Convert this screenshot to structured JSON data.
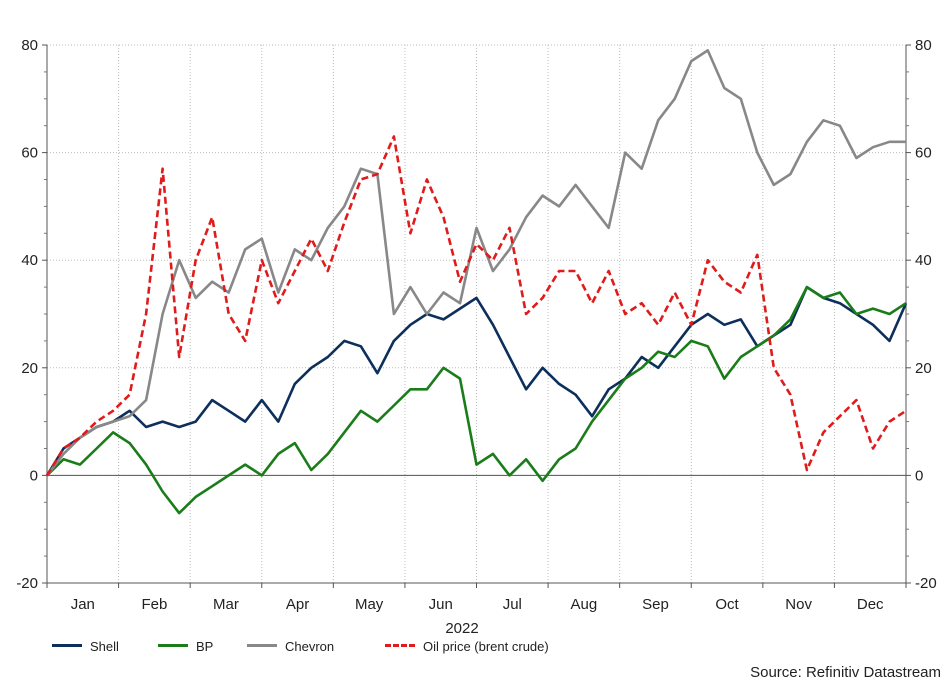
{
  "chart_data": {
    "type": "line",
    "xlabel": "2022",
    "ylabel": "",
    "ylim": [
      -20,
      80
    ],
    "yticks": [
      -20,
      0,
      20,
      40,
      60,
      80
    ],
    "categories": [
      "Jan",
      "Feb",
      "Mar",
      "Apr",
      "May",
      "Jun",
      "Jul",
      "Aug",
      "Sep",
      "Oct",
      "Nov",
      "Dec"
    ],
    "x_unit": "week of 2022 (1–52)",
    "grid": true,
    "legend_position": "bottom",
    "source": "Source: Refinitiv Datastream",
    "series": [
      {
        "name": "Shell",
        "color": "#0c2f5c",
        "dash": false,
        "x": [
          0,
          1,
          2,
          3,
          4,
          5,
          6,
          7,
          8,
          9,
          10,
          11,
          12,
          13,
          14,
          15,
          16,
          17,
          18,
          19,
          20,
          21,
          22,
          23,
          24,
          25,
          26,
          27,
          28,
          29,
          30,
          31,
          32,
          33,
          34,
          35,
          36,
          37,
          38,
          39,
          40,
          41,
          42,
          43,
          44,
          45,
          46,
          47,
          48,
          49,
          50,
          51,
          52
        ],
        "values": [
          0,
          5,
          7,
          9,
          10,
          12,
          9,
          10,
          9,
          10,
          14,
          12,
          10,
          14,
          10,
          17,
          20,
          22,
          25,
          24,
          19,
          25,
          28,
          30,
          29,
          31,
          33,
          28,
          22,
          16,
          20,
          17,
          15,
          11,
          16,
          18,
          22,
          20,
          24,
          28,
          30,
          28,
          29,
          24,
          26,
          28,
          35,
          33,
          32,
          30,
          28,
          25,
          32
        ]
      },
      {
        "name": "BP",
        "color": "#1a7d1a",
        "dash": false,
        "x": [
          0,
          1,
          2,
          3,
          4,
          5,
          6,
          7,
          8,
          9,
          10,
          11,
          12,
          13,
          14,
          15,
          16,
          17,
          18,
          19,
          20,
          21,
          22,
          23,
          24,
          25,
          26,
          27,
          28,
          29,
          30,
          31,
          32,
          33,
          34,
          35,
          36,
          37,
          38,
          39,
          40,
          41,
          42,
          43,
          44,
          45,
          46,
          47,
          48,
          49,
          50,
          51,
          52
        ],
        "values": [
          0,
          3,
          2,
          5,
          8,
          6,
          2,
          -3,
          -7,
          -4,
          -2,
          0,
          2,
          0,
          4,
          6,
          1,
          4,
          8,
          12,
          10,
          13,
          16,
          16,
          20,
          18,
          2,
          4,
          0,
          3,
          -1,
          3,
          5,
          10,
          14,
          18,
          20,
          23,
          22,
          25,
          24,
          18,
          22,
          24,
          26,
          29,
          35,
          33,
          34,
          30,
          31,
          30,
          32
        ]
      },
      {
        "name": "Chevron",
        "color": "#888888",
        "dash": false,
        "x": [
          0,
          1,
          2,
          3,
          4,
          5,
          6,
          7,
          8,
          9,
          10,
          11,
          12,
          13,
          14,
          15,
          16,
          17,
          18,
          19,
          20,
          21,
          22,
          23,
          24,
          25,
          26,
          27,
          28,
          29,
          30,
          31,
          32,
          33,
          34,
          35,
          36,
          37,
          38,
          39,
          40,
          41,
          42,
          43,
          44,
          45,
          46,
          47,
          48,
          49,
          50,
          51,
          52
        ],
        "values": [
          0,
          4,
          7,
          9,
          10,
          11,
          14,
          30,
          40,
          33,
          36,
          34,
          42,
          44,
          34,
          42,
          40,
          46,
          50,
          57,
          56,
          30,
          35,
          30,
          34,
          32,
          46,
          38,
          42,
          48,
          52,
          50,
          54,
          50,
          46,
          60,
          57,
          66,
          70,
          77,
          79,
          72,
          70,
          60,
          54,
          56,
          62,
          66,
          65,
          59,
          61,
          62,
          62
        ]
      },
      {
        "name": "Oil price (brent crude)",
        "color": "#e01b1b",
        "dash": true,
        "x": [
          0,
          1,
          2,
          3,
          4,
          5,
          6,
          7,
          8,
          9,
          10,
          11,
          12,
          13,
          14,
          15,
          16,
          17,
          18,
          19,
          20,
          21,
          22,
          23,
          24,
          25,
          26,
          27,
          28,
          29,
          30,
          31,
          32,
          33,
          34,
          35,
          36,
          37,
          38,
          39,
          40,
          41,
          42,
          43,
          44,
          45,
          46,
          47,
          48,
          49,
          50,
          51,
          52
        ],
        "values": [
          0,
          5,
          7,
          10,
          12,
          15,
          30,
          57,
          22,
          40,
          48,
          30,
          25,
          40,
          32,
          38,
          44,
          38,
          47,
          55,
          56,
          63,
          45,
          55,
          48,
          36,
          43,
          40,
          46,
          30,
          33,
          38,
          38,
          32,
          38,
          30,
          32,
          28,
          34,
          28,
          40,
          36,
          34,
          41,
          20,
          15,
          1,
          8,
          11,
          14,
          5,
          10,
          12
        ]
      }
    ]
  }
}
